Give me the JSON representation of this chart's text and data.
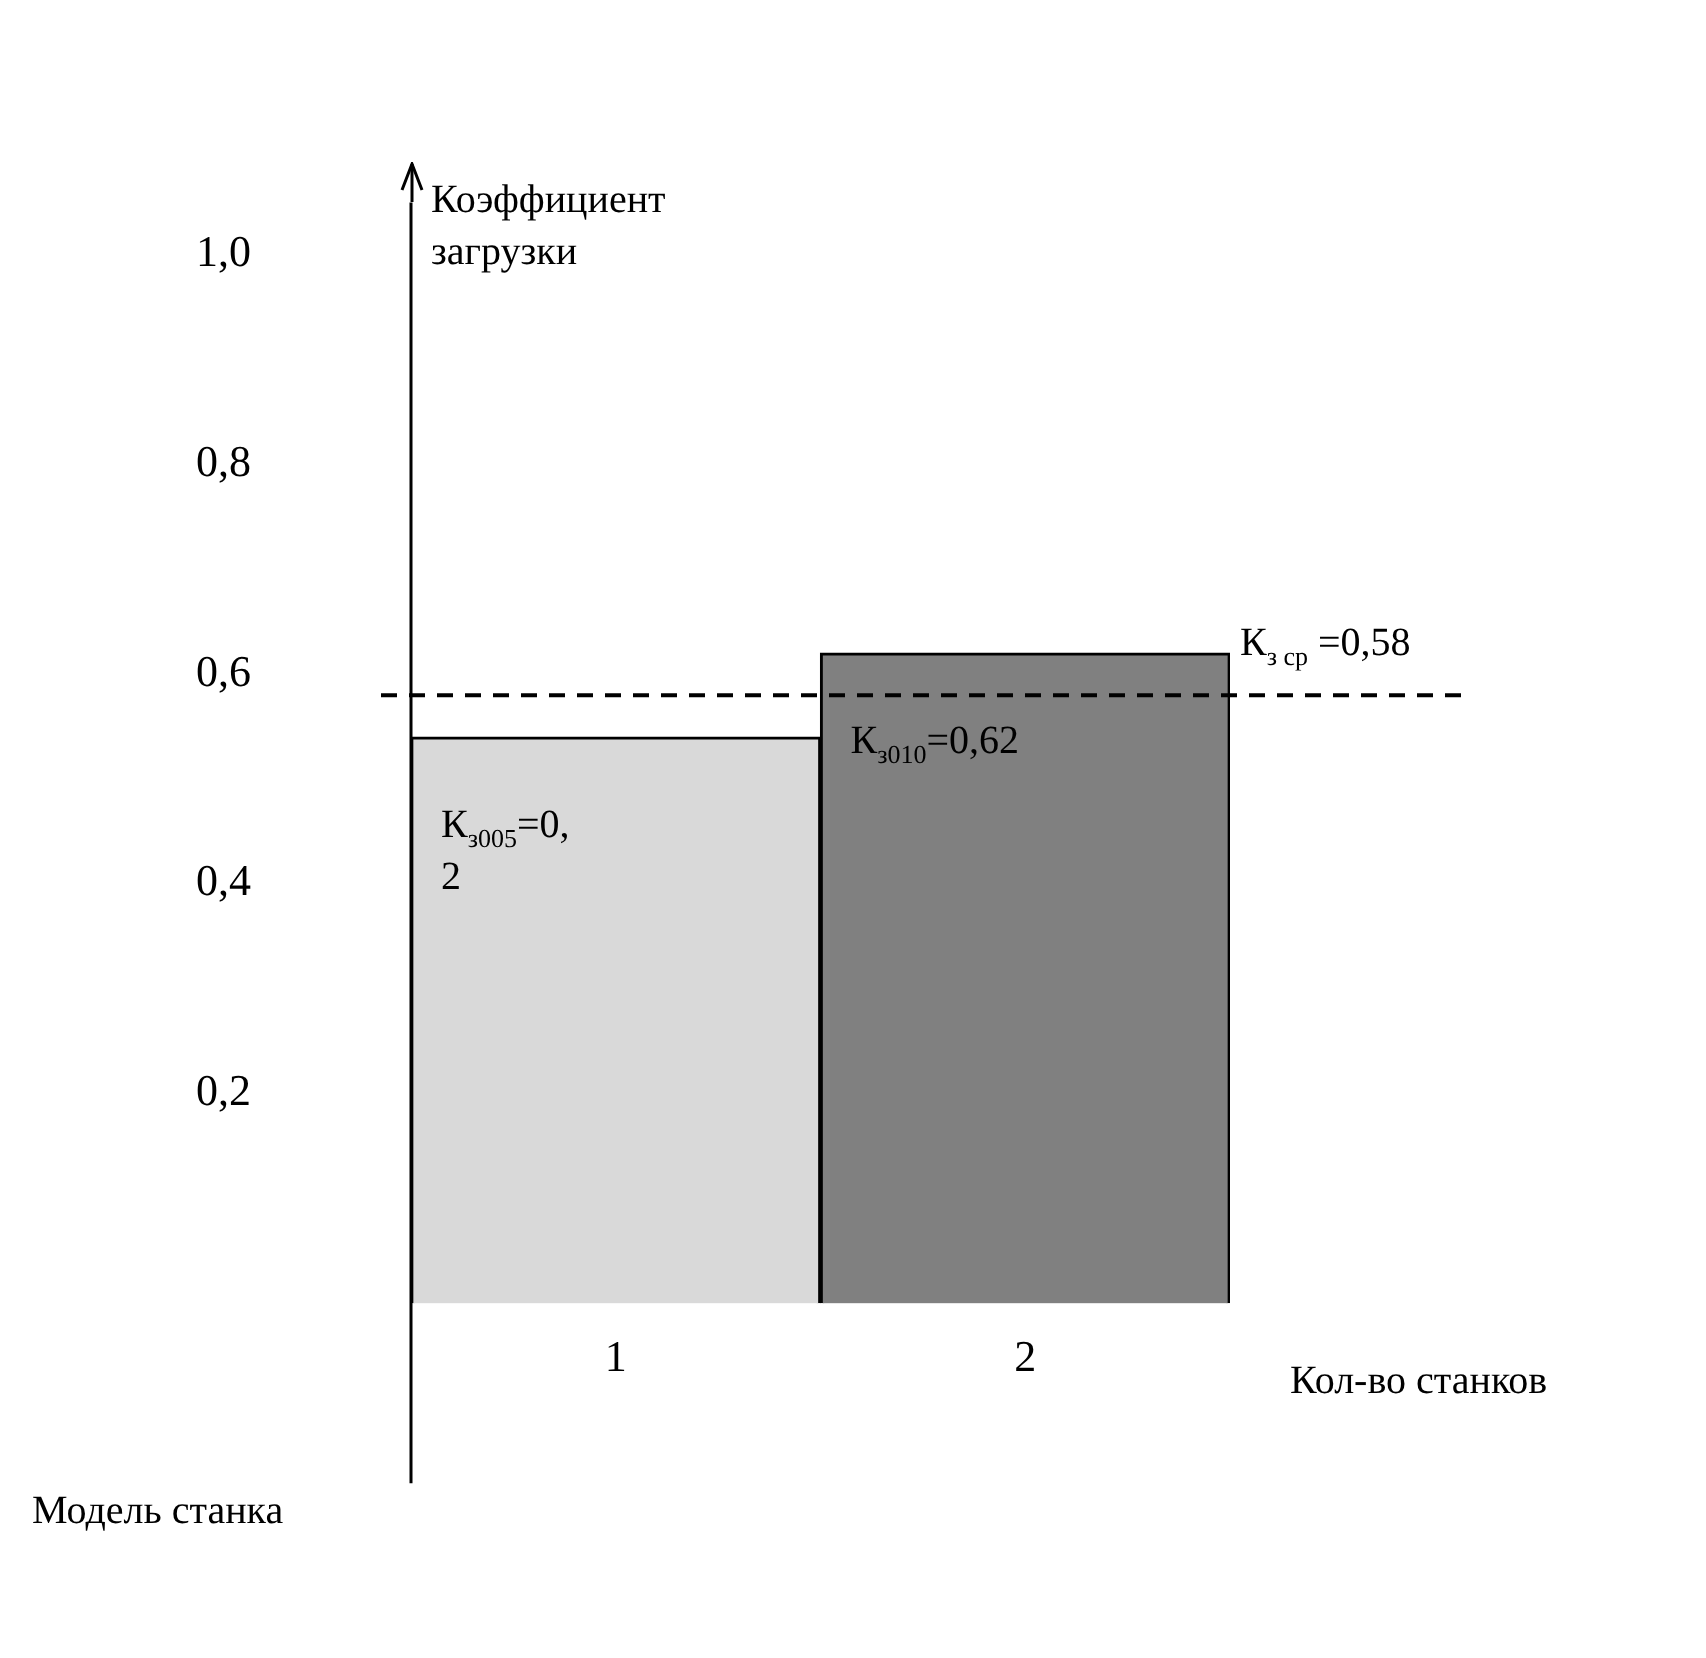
{
  "chart_data": {
    "type": "bar",
    "categories": [
      "1",
      "2"
    ],
    "values": [
      0.54,
      0.62
    ],
    "colors": [
      "#d9d9d9",
      "#808080"
    ],
    "ylabel": "Коэффициент загрузки",
    "xlabel": "Кол-во станков",
    "ylim": [
      0,
      1.05
    ],
    "yticks": [
      {
        "value": 0.2,
        "label": "0,2"
      },
      {
        "value": 0.4,
        "label": "0,4"
      },
      {
        "value": 0.6,
        "label": "0,6"
      },
      {
        "value": 0.8,
        "label": "0,8"
      },
      {
        "value": 1.0,
        "label": "1,0"
      }
    ],
    "grid": false,
    "legend": false,
    "ref_lines": [
      {
        "axis": "y",
        "value": 0.58,
        "label": "К$_{з ср}$ =0,58",
        "color": "#000000",
        "line_style": "dashed"
      }
    ],
    "annotations": [
      "К$_{з005}$=0, 2",
      "К$_{з010}$=0,62",
      "Модель станка"
    ]
  }
}
